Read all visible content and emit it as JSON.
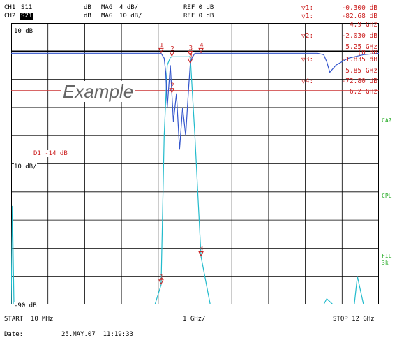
{
  "header": {
    "ch1_label": "CH1",
    "ch1_param": "S11",
    "ch1_fmt": "dB",
    "ch1_mag": "MAG",
    "ch1_scale": "4 dB/",
    "ch1_ref": "REF 0 dB",
    "ch2_label": "CH2",
    "ch2_param": "S21",
    "ch2_fmt": "dB",
    "ch2_mag": "MAG",
    "ch2_scale": "10 dB/",
    "ch2_ref": "REF 0 dB"
  },
  "markers_readout": [
    {
      "id": "1:",
      "value": "-0.300 dB"
    },
    {
      "id": "1:",
      "value": "-82.68 dB"
    },
    {
      "id": "",
      "value": "4.9 GHz"
    },
    {
      "id": "2:",
      "value": "-2.030 dB"
    },
    {
      "id": "",
      "value": "5.25 GHz"
    },
    {
      "id": "",
      "value": "(0 dB"
    },
    {
      "id": "3:",
      "value": "-1.835 dB"
    },
    {
      "id": "",
      "value": "5.85 GHz"
    },
    {
      "id": "4:",
      "value": "-72.80 dB"
    },
    {
      "id": "",
      "value": "6.2 GHz"
    }
  ],
  "trace_labels": {
    "top_ref": "10 dB",
    "mid_scale": "10 dB/",
    "limit": "D1 -14 dB",
    "bottom_ref": "-90 dB"
  },
  "side_labels": {
    "ca": "CA?",
    "cpl": "CPL",
    "fil": "FIL",
    "fil2": "3k"
  },
  "footer": {
    "start": "START  10 MHz",
    "span": "1 GHz/",
    "stop": "STOP 12 GHz",
    "date_label": "Date:",
    "date": "25.MAY.07  11:19:33"
  },
  "watermark": "Example",
  "colors": {
    "grid": "#000000",
    "trace_s11": "#3355cc",
    "trace_s21": "#22bbcc",
    "limit": "#cc3333",
    "marker": "#cc2222",
    "side": "#22aa22"
  },
  "chart_data": {
    "type": "line",
    "xlim": [
      0.01,
      12
    ],
    "x_unit": "GHz",
    "series": [
      {
        "name": "S11",
        "x": [
          0.01,
          0.5,
          1,
          2,
          3,
          4,
          4.8,
          4.9,
          5.0,
          5.05,
          5.1,
          5.2,
          5.3,
          5.4,
          5.5,
          5.6,
          5.7,
          5.8,
          5.85,
          5.9,
          6.0,
          6.2,
          7,
          8,
          9,
          10,
          10.2,
          10.3,
          10.4,
          10.6,
          11,
          11.5,
          12
        ],
        "y": [
          -0.3,
          -0.3,
          -0.3,
          -0.3,
          -0.3,
          -0.3,
          -0.3,
          -0.3,
          -1.0,
          -3.0,
          -8.0,
          -2.0,
          -10.0,
          -6.0,
          -14.0,
          -8.0,
          -12.0,
          -5.0,
          -1.8,
          -1.0,
          -0.3,
          -0.3,
          -0.3,
          -0.3,
          -0.3,
          -0.3,
          -0.5,
          -1.5,
          -3.0,
          -2.0,
          -1.0,
          -0.5,
          -0.3
        ]
      },
      {
        "name": "S21",
        "x": [
          0.01,
          0.05,
          0.1,
          0.3,
          0.5,
          1,
          2,
          3,
          4,
          4.7,
          4.9,
          5.0,
          5.1,
          5.2,
          5.25,
          5.4,
          5.6,
          5.8,
          5.85,
          6.0,
          6.2,
          6.5,
          7,
          8,
          9,
          10,
          10.2,
          10.3,
          10.5,
          11,
          11.2,
          11.3,
          11.5,
          12
        ],
        "y": [
          -92,
          -55,
          -93,
          -94,
          -95,
          -95,
          -95,
          -95,
          -95,
          -95,
          -83,
          -30,
          -5,
          -2.2,
          -2.0,
          -2.0,
          -2.0,
          -2.0,
          -1.8,
          -30,
          -73,
          -93,
          -95,
          -95,
          -95,
          -95,
          -94,
          -88,
          -94,
          -95,
          -92,
          -80,
          -94,
          -95
        ]
      }
    ],
    "limit_line": {
      "label": "D1 -14 dB",
      "value": -14
    },
    "markers": [
      {
        "id": 1,
        "x": 4.9
      },
      {
        "id": 2,
        "x": 5.25
      },
      {
        "id": 3,
        "x": 5.85
      },
      {
        "id": 4,
        "x": 6.2
      }
    ]
  }
}
